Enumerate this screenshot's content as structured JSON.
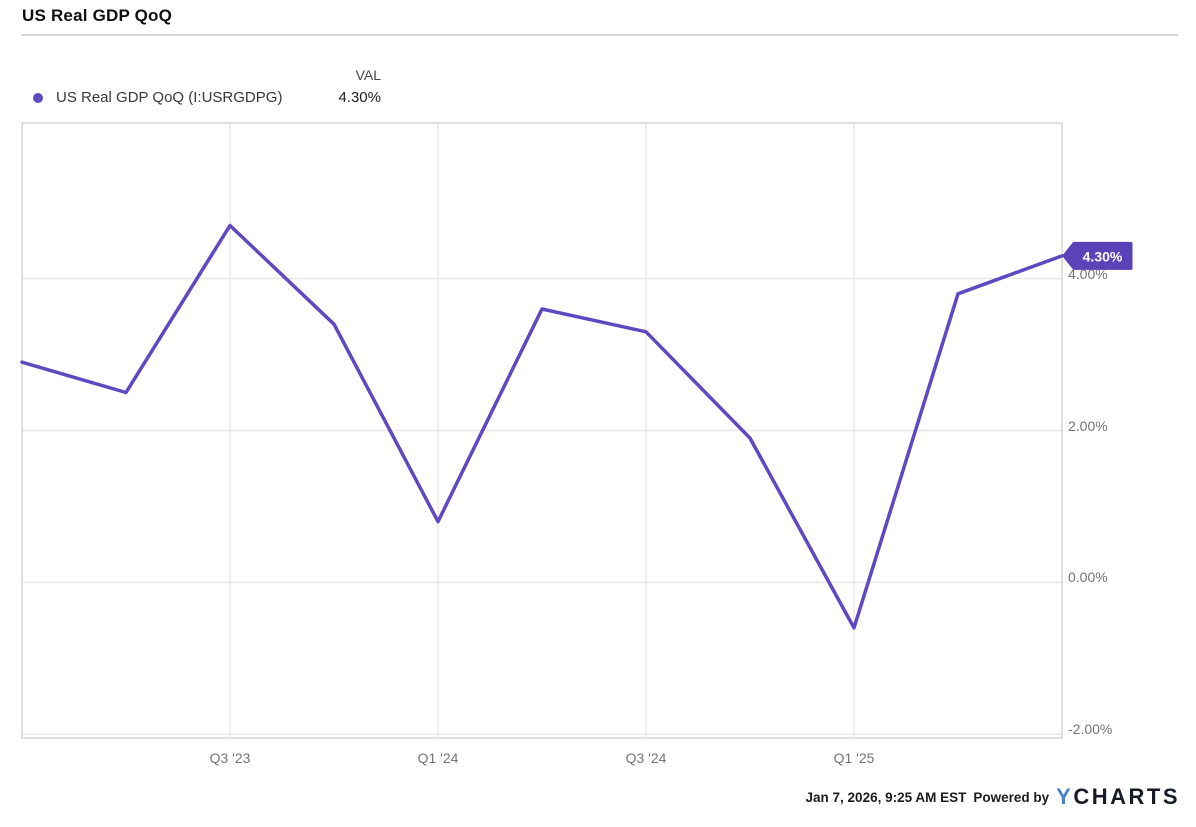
{
  "header": {
    "title": "US Real GDP QoQ"
  },
  "legend": {
    "series_label": "US Real GDP QoQ (I:USRGDPG)",
    "val_header": "VAL",
    "val": "4.30%",
    "dot_color": "#5f48c0"
  },
  "footer": {
    "timestamp": "Jan 7, 2026, 9:25 AM EST",
    "powered_by": "Powered by",
    "logo_y": "Y",
    "logo_charts": "CHARTS",
    "logo_y_color": "#4a80d4"
  },
  "chart_data": {
    "type": "line",
    "title": "US Real GDP QoQ",
    "categories": [
      "Q1 '23",
      "Q2 '23",
      "Q3 '23",
      "Q4 '23",
      "Q1 '24",
      "Q2 '24",
      "Q3 '24",
      "Q4 '24",
      "Q1 '25",
      "Q2 '25",
      "Q3 '25"
    ],
    "series": [
      {
        "name": "US Real GDP QoQ (I:USRGDPG)",
        "values": [
          2.9,
          2.5,
          4.7,
          3.4,
          0.8,
          3.6,
          3.3,
          1.9,
          -0.6,
          3.8,
          4.3
        ]
      }
    ],
    "unit": "%",
    "x_tick_labels": [
      "Q3 '23",
      "Q1 '24",
      "Q3 '24",
      "Q1 '25"
    ],
    "x_tick_indices": [
      2,
      4,
      6,
      8
    ],
    "y_tick_labels": [
      "4.00%",
      "2.00%",
      "0.00%",
      "-2.00%"
    ],
    "y_tick_values": [
      4,
      2,
      0,
      -2
    ],
    "ylim": [
      -2.05,
      6.05
    ],
    "grid": true,
    "legend_position": "top-left",
    "last_value_label": "4.30%",
    "line_color": "#5f48c0",
    "badge_color": "#5a42b8"
  }
}
